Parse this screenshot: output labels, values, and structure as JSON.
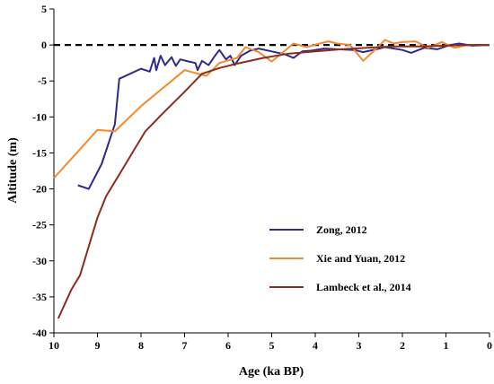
{
  "chart_data": {
    "type": "line",
    "title": "",
    "xlabel": "Age (ka BP)",
    "ylabel": "Altitude (m)",
    "xlim": [
      10,
      0
    ],
    "ylim": [
      -40,
      5
    ],
    "x_reversed": true,
    "x_ticks": [
      10,
      9,
      8,
      7,
      6,
      5,
      4,
      3,
      2,
      1,
      0
    ],
    "y_ticks": [
      5,
      0,
      -5,
      -10,
      -15,
      -20,
      -25,
      -30,
      -35,
      -40
    ],
    "reference_line": {
      "y": 0,
      "style": "dashed",
      "color": "#000000"
    },
    "legend_position": "lower-right",
    "grid": false,
    "series": [
      {
        "name": "Zong,  2012",
        "color": "#2e2a8c",
        "points": [
          [
            9.45,
            -19.5
          ],
          [
            9.2,
            -20.0
          ],
          [
            8.9,
            -16.5
          ],
          [
            8.6,
            -11.0
          ],
          [
            8.5,
            -4.7
          ],
          [
            8.0,
            -3.3
          ],
          [
            7.8,
            -3.7
          ],
          [
            7.7,
            -1.8
          ],
          [
            7.65,
            -3.5
          ],
          [
            7.55,
            -1.5
          ],
          [
            7.45,
            -2.8
          ],
          [
            7.3,
            -1.7
          ],
          [
            7.2,
            -2.9
          ],
          [
            7.1,
            -2.0
          ],
          [
            6.9,
            -2.3
          ],
          [
            6.75,
            -2.5
          ],
          [
            6.7,
            -3.5
          ],
          [
            6.6,
            -2.2
          ],
          [
            6.45,
            -2.8
          ],
          [
            6.3,
            -1.5
          ],
          [
            6.2,
            -0.7
          ],
          [
            6.05,
            -2.0
          ],
          [
            5.95,
            -1.5
          ],
          [
            5.85,
            -2.8
          ],
          [
            5.7,
            -1.5
          ],
          [
            5.5,
            -0.8
          ],
          [
            5.3,
            -0.5
          ],
          [
            5.0,
            -0.9
          ],
          [
            4.7,
            -1.3
          ],
          [
            4.5,
            -1.8
          ],
          [
            4.3,
            -0.9
          ],
          [
            4.1,
            -0.8
          ],
          [
            3.8,
            -0.5
          ],
          [
            3.5,
            -0.6
          ],
          [
            3.1,
            -0.7
          ],
          [
            2.9,
            -1.0
          ],
          [
            2.6,
            -0.6
          ],
          [
            2.4,
            -0.3
          ],
          [
            2.0,
            -0.7
          ],
          [
            1.8,
            -1.1
          ],
          [
            1.5,
            -0.4
          ],
          [
            1.2,
            -0.6
          ],
          [
            0.9,
            0.0
          ],
          [
            0.7,
            0.2
          ],
          [
            0.4,
            -0.1
          ],
          [
            0.0,
            0.0
          ]
        ]
      },
      {
        "name": "Xie and Yuan,  2012",
        "color": "#f28a2e",
        "points": [
          [
            10.0,
            -18.5
          ],
          [
            9.0,
            -11.8
          ],
          [
            8.6,
            -12.0
          ],
          [
            8.0,
            -8.5
          ],
          [
            7.0,
            -3.5
          ],
          [
            6.5,
            -4.3
          ],
          [
            6.2,
            -2.5
          ],
          [
            5.8,
            -1.8
          ],
          [
            5.6,
            -0.3
          ],
          [
            5.3,
            -1.0
          ],
          [
            5.0,
            -2.3
          ],
          [
            4.7,
            -0.8
          ],
          [
            4.5,
            0.2
          ],
          [
            4.2,
            -0.3
          ],
          [
            3.9,
            0.2
          ],
          [
            3.7,
            0.5
          ],
          [
            3.5,
            0.2
          ],
          [
            3.2,
            0.0
          ],
          [
            2.9,
            -2.2
          ],
          [
            2.6,
            -0.5
          ],
          [
            2.4,
            0.7
          ],
          [
            2.2,
            0.2
          ],
          [
            2.0,
            0.4
          ],
          [
            1.7,
            0.5
          ],
          [
            1.4,
            -0.4
          ],
          [
            1.1,
            0.4
          ],
          [
            0.8,
            -0.4
          ],
          [
            0.5,
            0.0
          ],
          [
            0.0,
            0.0
          ]
        ]
      },
      {
        "name": "Lambeck et al.,  2014",
        "color": "#8b2d1d",
        "points": [
          [
            9.9,
            -38.0
          ],
          [
            9.6,
            -34.0
          ],
          [
            9.4,
            -32.0
          ],
          [
            9.2,
            -28.0
          ],
          [
            9.0,
            -24.0
          ],
          [
            8.8,
            -21.0
          ],
          [
            8.5,
            -18.0
          ],
          [
            8.2,
            -15.0
          ],
          [
            7.9,
            -12.0
          ],
          [
            7.5,
            -9.5
          ],
          [
            7.0,
            -6.5
          ],
          [
            6.6,
            -4.0
          ],
          [
            6.2,
            -3.2
          ],
          [
            5.8,
            -2.6
          ],
          [
            5.2,
            -1.8
          ],
          [
            4.6,
            -1.2
          ],
          [
            4.0,
            -0.9
          ],
          [
            3.4,
            -0.6
          ],
          [
            2.8,
            -0.4
          ],
          [
            2.2,
            -0.2
          ],
          [
            1.6,
            -0.2
          ],
          [
            1.0,
            -0.1
          ],
          [
            0.5,
            0.0
          ],
          [
            0.0,
            0.0
          ]
        ]
      }
    ]
  }
}
